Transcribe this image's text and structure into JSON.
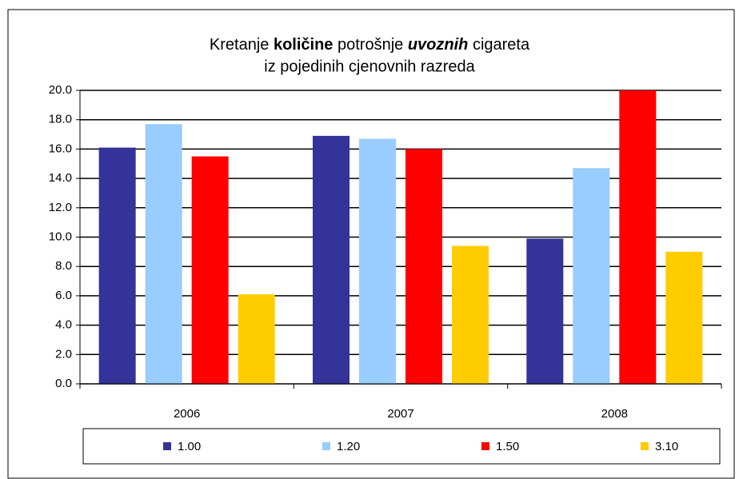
{
  "chart_data": {
    "type": "bar",
    "title": [
      "Kretanje",
      "količine",
      "potrošnje",
      "uvoznih",
      "cigareta"
    ],
    "subtitle": "iz pojedinih cjenovnih razreda",
    "categories": [
      "2006",
      "2007",
      "2008"
    ],
    "series": [
      {
        "name": "1.00",
        "color": "#333399",
        "values": [
          16.1,
          16.9,
          9.9
        ]
      },
      {
        "name": "1.20",
        "color": "#99ccff",
        "values": [
          17.7,
          16.7,
          14.7
        ]
      },
      {
        "name": "1.50",
        "color": "#ff0000",
        "values": [
          15.5,
          16.0,
          20.0
        ]
      },
      {
        "name": "3.10",
        "color": "#ffcc00",
        "values": [
          6.1,
          9.4,
          9.0
        ]
      }
    ],
    "ylim": [
      0,
      20
    ],
    "yticks": [
      {
        "value": 0,
        "label": "0.0"
      },
      {
        "value": 2,
        "label": "2.0"
      },
      {
        "value": 4,
        "label": "4.0"
      },
      {
        "value": 6,
        "label": "6.0"
      },
      {
        "value": 8,
        "label": "8.0"
      },
      {
        "value": 10,
        "label": "10.0"
      },
      {
        "value": 12,
        "label": "12.0"
      },
      {
        "value": 14,
        "label": "14.0"
      },
      {
        "value": 16,
        "label": "16.0"
      },
      {
        "value": 18,
        "label": "18.0"
      },
      {
        "value": 20,
        "label": "20.0"
      }
    ],
    "grid": true,
    "legend": "bottom"
  }
}
